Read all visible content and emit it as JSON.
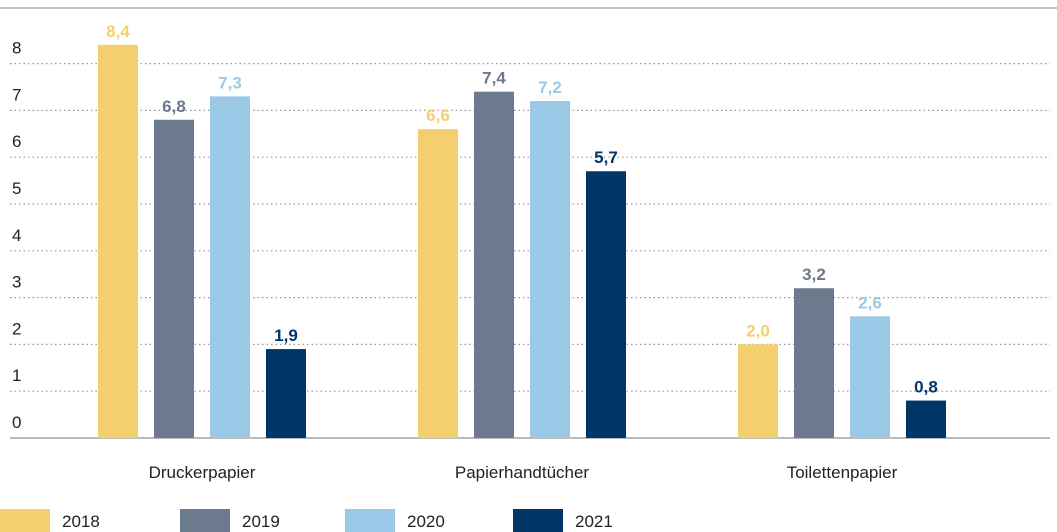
{
  "chart_data": {
    "type": "bar",
    "categories": [
      "Druckerpapier",
      "Papierhandtücher",
      "Toilettenpapier"
    ],
    "series": [
      {
        "name": "2018",
        "color": "#f5cf6e",
        "values": [
          8.4,
          6.6,
          2.0
        ],
        "value_labels": [
          "8,4",
          "6,6",
          "2,0"
        ]
      },
      {
        "name": "2019",
        "color": "#6b7a8c",
        "values": [
          6.8,
          7.4,
          3.2
        ],
        "value_labels": [
          "6,8",
          "7,4",
          "3,2"
        ]
      },
      {
        "name": "2020",
        "color": "#9bc9e8",
        "values": [
          7.3,
          7.2,
          2.6
        ],
        "value_labels": [
          "7,3",
          "7,2",
          "2,6"
        ]
      },
      {
        "name": "2021",
        "color": "#003767",
        "values": [
          1.9,
          5.7,
          0.8
        ],
        "value_labels": [
          "1,9",
          "5,7",
          "0,8"
        ]
      }
    ],
    "ylim": [
      0,
      9
    ],
    "yticks": [
      0,
      1,
      2,
      3,
      4,
      5,
      6,
      7,
      8
    ],
    "grid": true,
    "legend": "bottom"
  }
}
